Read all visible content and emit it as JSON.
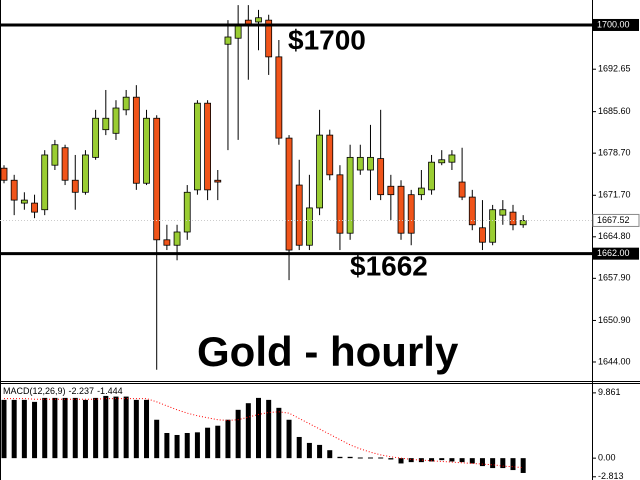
{
  "chart_data": [
    {
      "type": "candlestick",
      "up_color": "#9acd32",
      "down_color": "#f0541a",
      "ylim": [
        1640.84,
        1704.15
      ],
      "yticks": [
        {
          "value": 1700,
          "label": "1700.00"
        },
        1692.65,
        {
          "value": 1685.6,
          "label": "1685.60"
        },
        {
          "value": 1678.7,
          "label": "1678.70"
        },
        {
          "value": 1671.7,
          "label": "1671.70"
        },
        {
          "value": 1664.8,
          "label": "1664.80"
        },
        {
          "value": 1657.9,
          "label": "1657.90"
        },
        {
          "value": 1650.9,
          "label": "1650.90"
        },
        {
          "value": 1644,
          "label": "1644.00"
        }
      ],
      "hlines": [
        {
          "value": 1700,
          "label": "1700.00"
        },
        {
          "value": 1662,
          "label": "1662.00"
        }
      ],
      "current": {
        "value": 1667.52,
        "label": "1667.52"
      },
      "annotations": [
        "$1700",
        "$1662",
        "Gold - hourly"
      ],
      "open": [
        1676.2,
        1674.2,
        1670.4,
        1670.4,
        1669.3,
        1676.7,
        1679.6,
        1674.2,
        1672.2,
        1678.0,
        1682.6,
        1682.0,
        1685.9,
        1688.0,
        1673.7,
        1684.5,
        1664.3,
        1663.4,
        1665.6,
        1672.6,
        1687.0,
        1674.2,
        1696.8,
        1697.8,
        1700.8,
        1700.5,
        1700.8,
        1694.7,
        1681.2,
        1673.4,
        1663.4,
        1669.6,
        1681.7,
        1675.1,
        1665.4,
        1675.9,
        1675.9,
        1677.8,
        1673.2,
        1673.2,
        1671.8,
        1671.8,
        1672.6,
        1677.1,
        1677.2,
        1673.9,
        1671.4,
        1666.3,
        1663.9,
        1668.4,
        1668.9,
        1666.8
      ],
      "high": [
        1676.7,
        1675.1,
        1672.2,
        1671.8,
        1679.2,
        1680.9,
        1680.1,
        1678.4,
        1679.2,
        1685.9,
        1689.2,
        1687.5,
        1689.2,
        1690.0,
        1685.9,
        1685.0,
        1666.8,
        1666.8,
        1673.4,
        1687.5,
        1687.5,
        1675.9,
        1700.8,
        1703.3,
        1703.3,
        1702.5,
        1701.7,
        1697.5,
        1681.7,
        1677.6,
        1675.1,
        1685.9,
        1682.6,
        1676.7,
        1680.1,
        1680.1,
        1683.4,
        1685.9,
        1675.1,
        1674.2,
        1672.6,
        1675.9,
        1678.4,
        1679.2,
        1679.2,
        1679.6,
        1672.6,
        1670.9,
        1670.1,
        1670.9,
        1670.1,
        1668.4
      ],
      "low": [
        1673.7,
        1668.4,
        1669.3,
        1667.9,
        1668.4,
        1675.9,
        1673.4,
        1669.3,
        1671.8,
        1677.6,
        1681.7,
        1680.9,
        1685.0,
        1672.6,
        1673.4,
        1642.7,
        1662.6,
        1660.9,
        1664.3,
        1671.8,
        1670.9,
        1670.9,
        1679.2,
        1680.9,
        1690.9,
        1695.8,
        1691.7,
        1680.1,
        1657.6,
        1662.6,
        1662.6,
        1668.4,
        1674.2,
        1662.6,
        1664.3,
        1675.1,
        1670.9,
        1670.9,
        1667.6,
        1664.3,
        1663.4,
        1670.9,
        1671.8,
        1676.7,
        1675.9,
        1670.9,
        1665.9,
        1662.6,
        1663.4,
        1666.8,
        1665.9,
        1666.3
      ],
      "close": [
        1674.2,
        1670.9,
        1670.9,
        1668.9,
        1678.4,
        1680.1,
        1674.2,
        1672.2,
        1678.4,
        1684.5,
        1684.5,
        1686.2,
        1688.0,
        1673.7,
        1684.5,
        1664.3,
        1663.4,
        1665.6,
        1672.2,
        1687.0,
        1672.6,
        1673.9,
        1698.0,
        1700.0,
        1700.0,
        1701.2,
        1694.7,
        1681.2,
        1662.6,
        1663.4,
        1669.6,
        1681.7,
        1675.1,
        1665.4,
        1678.0,
        1678.0,
        1678.0,
        1671.8,
        1671.8,
        1665.4,
        1665.4,
        1672.9,
        1677.2,
        1677.6,
        1678.4,
        1671.4,
        1666.8,
        1663.9,
        1669.3,
        1669.3,
        1666.8,
        1667.5
      ]
    },
    {
      "type": "macd",
      "title": "MACD(12,26,9)",
      "histogram_color": "#000000",
      "signal_color": "#ff0000",
      "ylim": [
        -3.3,
        11.2
      ],
      "yticks": [
        9.861,
        {
          "value": 0,
          "label": "0.00"
        },
        -2.813
      ],
      "histogram": [
        8.8,
        8.8,
        8.8,
        8.5,
        9.1,
        9.1,
        9.1,
        9.1,
        8.8,
        9.1,
        9.4,
        9.3,
        9.3,
        8.8,
        8.8,
        5.8,
        3.8,
        3.5,
        3.8,
        3.9,
        4.6,
        4.9,
        5.8,
        7.3,
        8.3,
        9.1,
        8.8,
        7.6,
        5.8,
        3.2,
        2.3,
        2.0,
        1.2,
        0.2,
        0.2,
        0.1,
        0.1,
        0.1,
        -0.2,
        -0.8,
        -0.6,
        -0.6,
        -0.5,
        -0.3,
        -0.5,
        -0.6,
        -0.8,
        -1.2,
        -1.5,
        -1.5,
        -1.8,
        -2.237
      ],
      "signal": [
        9.0,
        9.0,
        9.0,
        8.9,
        8.9,
        8.9,
        8.9,
        8.9,
        8.9,
        8.9,
        9.0,
        9.0,
        9.0,
        9.0,
        9.0,
        8.5,
        7.9,
        7.3,
        6.8,
        6.4,
        6.1,
        5.8,
        5.7,
        5.8,
        6.2,
        6.6,
        6.9,
        7.0,
        6.8,
        6.0,
        5.2,
        4.4,
        3.6,
        2.8,
        2.0,
        1.4,
        0.9,
        0.5,
        0.2,
        0.0,
        -0.2,
        -0.3,
        -0.4,
        -0.5,
        -0.6,
        -0.7,
        -0.8,
        -0.9,
        -1.0,
        -1.2,
        -1.3,
        -1.444
      ]
    }
  ]
}
